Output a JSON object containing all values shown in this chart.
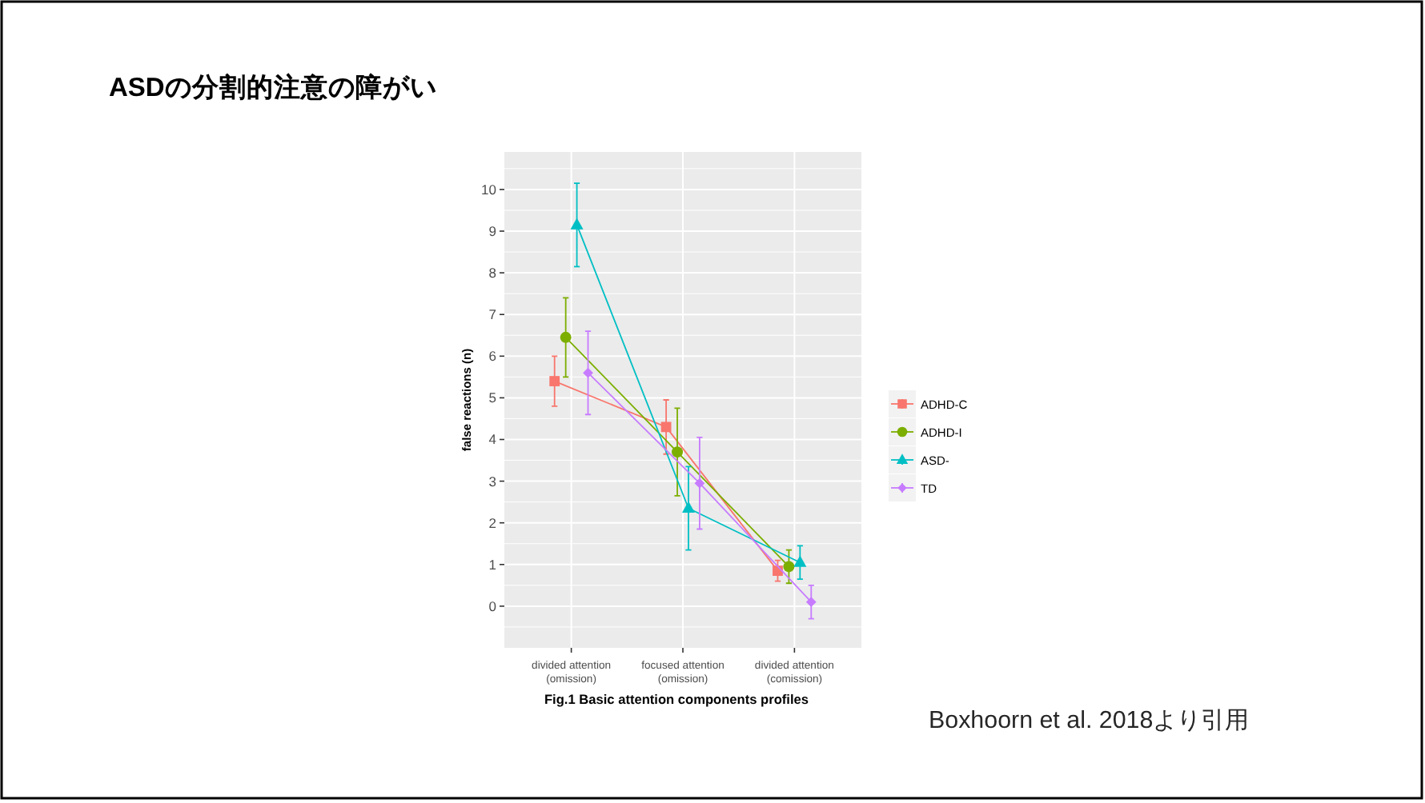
{
  "chart_data": {
    "type": "line",
    "title": "ASDの分割的注意の障がい",
    "xlabel": "Fig.1 Basic attention components profiles",
    "ylabel": "false reactions (n)",
    "categories": [
      "divided attention\n(omission)",
      "focused attention\n(omission)",
      "divided attention\n(comission)"
    ],
    "series": [
      {
        "name": "ADHD-C",
        "color": "#f8766d",
        "marker": "square",
        "values": [
          5.4,
          4.3,
          0.85
        ],
        "errors": [
          0.6,
          0.65,
          0.25
        ]
      },
      {
        "name": "ADHD-I",
        "color": "#7cae00",
        "marker": "circle",
        "values": [
          6.45,
          3.7,
          0.95
        ],
        "errors": [
          0.95,
          1.05,
          0.4
        ]
      },
      {
        "name": "ASD-",
        "color": "#00bfc4",
        "marker": "triangle",
        "values": [
          9.15,
          2.35,
          1.05
        ],
        "errors": [
          1.0,
          1.0,
          0.4
        ]
      },
      {
        "name": "TD",
        "color": "#c77cff",
        "marker": "diamond",
        "values": [
          5.6,
          2.95,
          0.1
        ],
        "errors": [
          1.0,
          1.1,
          0.4
        ]
      }
    ],
    "ylim": [
      -1.0,
      10.9
    ],
    "yticks": [
      0,
      1,
      2,
      3,
      4,
      5,
      6,
      7,
      8,
      9,
      10
    ],
    "grid": true,
    "legend": "right",
    "annotations": [
      "Boxhoorn et al. 2018より引用"
    ]
  }
}
